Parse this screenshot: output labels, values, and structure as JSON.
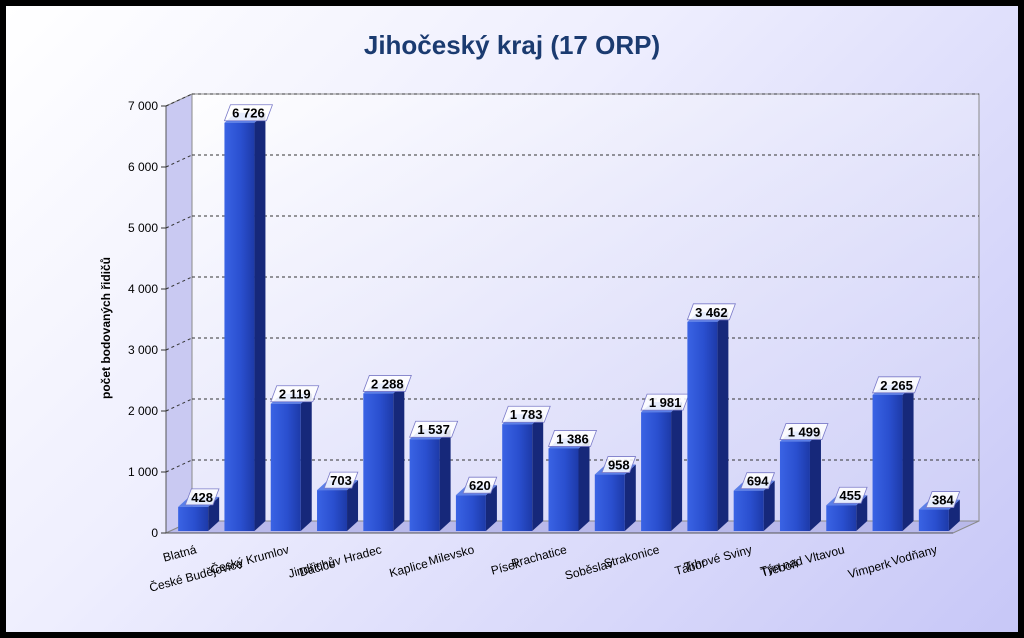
{
  "chart_data": {
    "type": "bar",
    "title": "Jihočeský kraj (17 ORP)",
    "xlabel": "",
    "ylabel": "počet bodovaných řidičů",
    "ylim": [
      0,
      7000
    ],
    "yticks": [
      0,
      1000,
      2000,
      3000,
      4000,
      5000,
      6000,
      7000
    ],
    "ytick_labels": [
      "0",
      "1 000",
      "2 000",
      "3 000",
      "4 000",
      "5 000",
      "6 000",
      "7 000"
    ],
    "grid": true,
    "categories": [
      "Blatná",
      "České Budějovice",
      "Český Krumlov",
      "Dačice",
      "Jindřichův Hradec",
      "Kaplice",
      "Milevsko",
      "Písek",
      "Prachatice",
      "Soběslav",
      "Strakonice",
      "Tábor",
      "Trhové Sviny",
      "Třeboň",
      "Týn nad Vltavou",
      "Vimperk",
      "Vodňany"
    ],
    "values": [
      428,
      6726,
      2119,
      703,
      2288,
      1537,
      620,
      1783,
      1386,
      958,
      1981,
      3462,
      694,
      1499,
      455,
      2265,
      384
    ],
    "data_labels": [
      "428",
      "6 726",
      "2 119",
      "703",
      "2 288",
      "1 537",
      "620",
      "1 783",
      "1 386",
      "958",
      "1 981",
      "3 462",
      "694",
      "1 499",
      "455",
      "2 265",
      "384"
    ],
    "colors": {
      "bar_front": "#2f56d6",
      "bar_side": "#16287a",
      "bar_top": "#5a7fe8",
      "title": "#1b3b70"
    }
  }
}
